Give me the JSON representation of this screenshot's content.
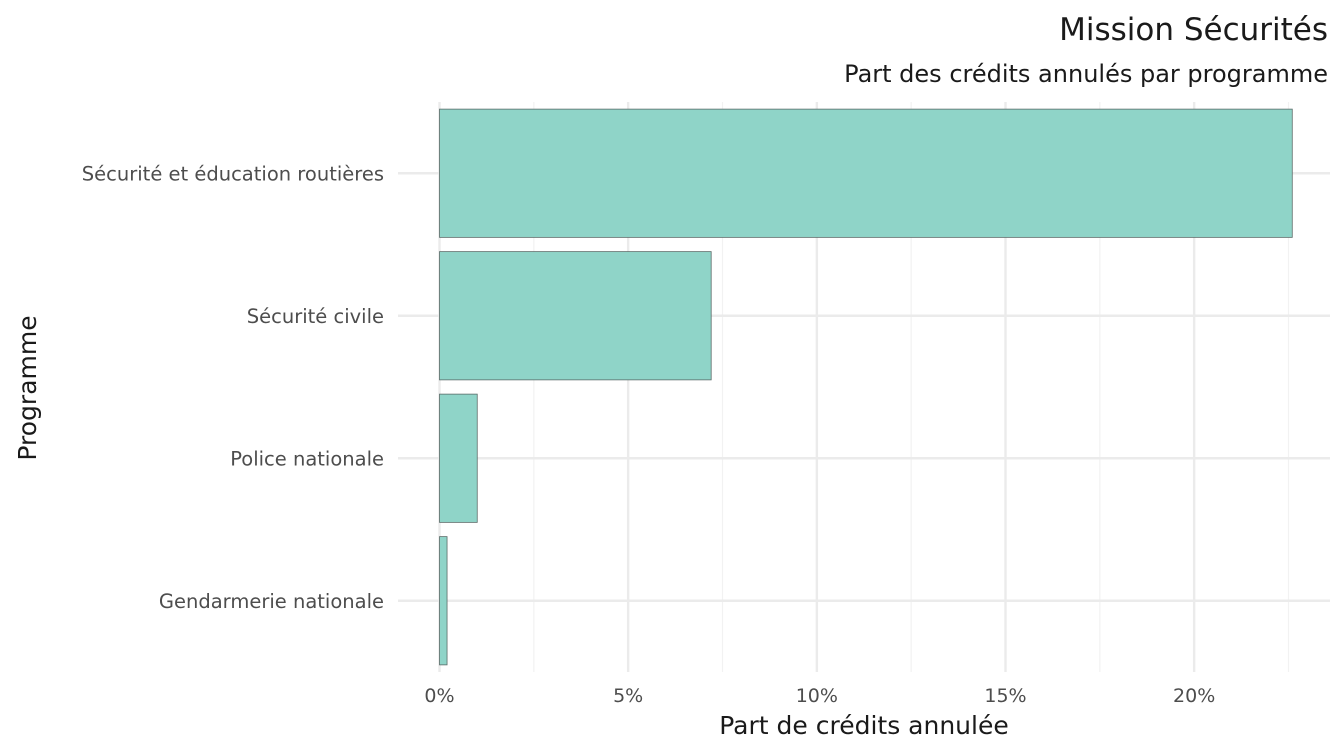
{
  "chart_data": {
    "type": "bar",
    "orientation": "horizontal",
    "title": "Mission Sécurités",
    "subtitle": "Part des crédits annulés par programme",
    "xlabel": "Part de crédits annulée",
    "ylabel": "Programme",
    "categories": [
      "Sécurité et éducation routières",
      "Sécurité civile",
      "Police nationale",
      "Gendarmerie nationale"
    ],
    "values": [
      22.6,
      7.2,
      1.0,
      0.2
    ],
    "value_unit": "%",
    "xlim": [
      -1.1,
      23.6
    ],
    "xticks": [
      0,
      5,
      10,
      15,
      20
    ],
    "xtick_labels": [
      "0%",
      "5%",
      "10%",
      "15%",
      "20%"
    ],
    "grid": true,
    "legend": "none",
    "colors": {
      "bar_fill": "#8fd4c8",
      "bar_stroke": "#5a6b68",
      "grid_major": "#ebebeb",
      "grid_minor": "#f2f2f2"
    }
  }
}
